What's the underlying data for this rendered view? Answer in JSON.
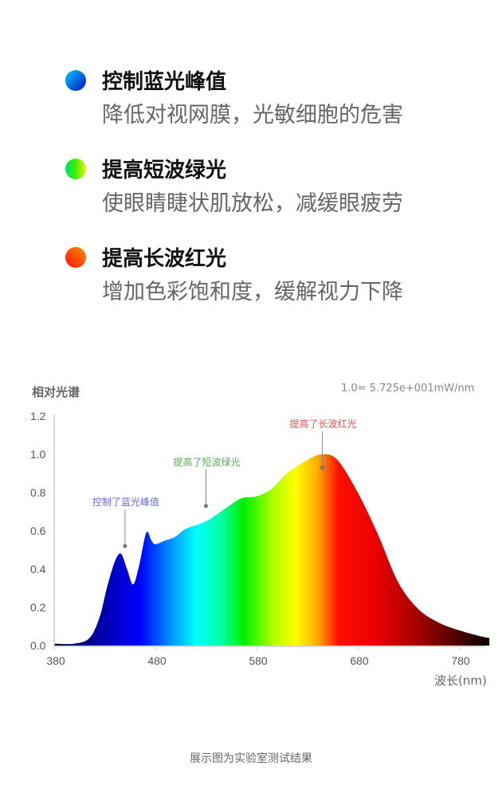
{
  "features": [
    {
      "title": "控制蓝光峰值",
      "subtitle": "降低对视网膜，光敏细胞的危害",
      "colors": [
        "#00b4ff",
        "#0010d0"
      ]
    },
    {
      "title": "提高短波绿光",
      "subtitle": "使眼睛睫状肌放松，减缓眼疲劳",
      "colors": [
        "#00e060",
        "#e8f000"
      ]
    },
    {
      "title": "提高长波红光",
      "subtitle": "增加色彩饱和度，缓解视力下降",
      "colors": [
        "#ff8a00",
        "#ff1010"
      ]
    }
  ],
  "chart_data": {
    "type": "area",
    "ylabel": "相对光谱",
    "xlabel": "波长(nm)",
    "note": "1.0= 5.725e+001mW/nm",
    "xlim": [
      380,
      810
    ],
    "ylim": [
      0,
      1.2
    ],
    "xticks": [
      "380",
      "480",
      "580",
      "680",
      "780"
    ],
    "yticks": [
      "0.0",
      "0.2",
      "0.4",
      "0.6",
      "0.8",
      "1.0",
      "1.2"
    ],
    "x": [
      380,
      400,
      415,
      425,
      432,
      440,
      446,
      452,
      458,
      464,
      471,
      476,
      480,
      490,
      500,
      510,
      530,
      550,
      565,
      580,
      595,
      610,
      630,
      645,
      660,
      680,
      700,
      720,
      740,
      760,
      780,
      800,
      810
    ],
    "y": [
      0.01,
      0.01,
      0.04,
      0.15,
      0.3,
      0.44,
      0.48,
      0.4,
      0.32,
      0.42,
      0.59,
      0.55,
      0.53,
      0.55,
      0.57,
      0.61,
      0.65,
      0.72,
      0.77,
      0.78,
      0.82,
      0.9,
      0.97,
      1.0,
      0.97,
      0.8,
      0.58,
      0.33,
      0.19,
      0.12,
      0.08,
      0.05,
      0.04
    ],
    "annotations": [
      {
        "text": "控制了蓝光峰值",
        "x": 450,
        "y": 0.52,
        "color": "#6a6ad8"
      },
      {
        "text": "提高了短波绿光",
        "x": 530,
        "y": 0.73,
        "color": "#5aa85a"
      },
      {
        "text": "提高了长波红光",
        "x": 645,
        "y": 0.93,
        "color": "#e05050"
      }
    ]
  },
  "footer": "展示图为实验室测试结果"
}
